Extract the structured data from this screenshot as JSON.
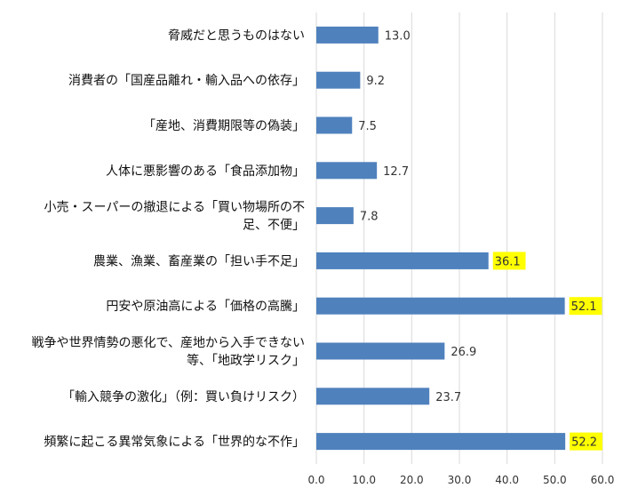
{
  "chart_data": {
    "type": "bar",
    "orientation": "horizontal",
    "title": "",
    "xlabel": "",
    "ylabel": "",
    "xlim": [
      0,
      60
    ],
    "xticks": [
      0,
      10,
      20,
      30,
      40,
      50,
      60
    ],
    "xtick_labels": [
      "0.0",
      "10.0",
      "20.0",
      "30.0",
      "40.0",
      "50.0",
      "60.0"
    ],
    "grid": true,
    "legend": "none",
    "bar_color": "#4f81bd",
    "highlight_color": "#ffff00",
    "categories": [
      [
        "脅威だと思うものはない"
      ],
      [
        "消費者の「国産品離れ・輸入品への依存」"
      ],
      [
        "「産地、消費期限等の偽装」"
      ],
      [
        "人体に悪影響のある「食品添加物」"
      ],
      [
        "小売・スーパーの撤退による「買い物場所の不",
        "足、不便」"
      ],
      [
        "農業、漁業、畜産業の「担い手不足」"
      ],
      [
        "円安や原油高による「価格の高騰」"
      ],
      [
        "戦争や世界情勢の悪化で、産地から入手できない",
        "等、「地政学リスク」"
      ],
      [
        "「輸入競争の激化」（例：買い負けリスク）"
      ],
      [
        "頻繁に起こる異常気象による「世界的な不作」"
      ]
    ],
    "values": [
      13.0,
      9.2,
      7.5,
      12.7,
      7.8,
      36.1,
      52.1,
      26.9,
      23.7,
      52.2
    ],
    "value_labels": [
      "13.0",
      "9.2",
      "7.5",
      "12.7",
      "7.8",
      "36.1",
      "52.1",
      "26.9",
      "23.7",
      "52.2"
    ],
    "highlighted": [
      false,
      false,
      false,
      false,
      false,
      true,
      true,
      false,
      false,
      true
    ]
  }
}
